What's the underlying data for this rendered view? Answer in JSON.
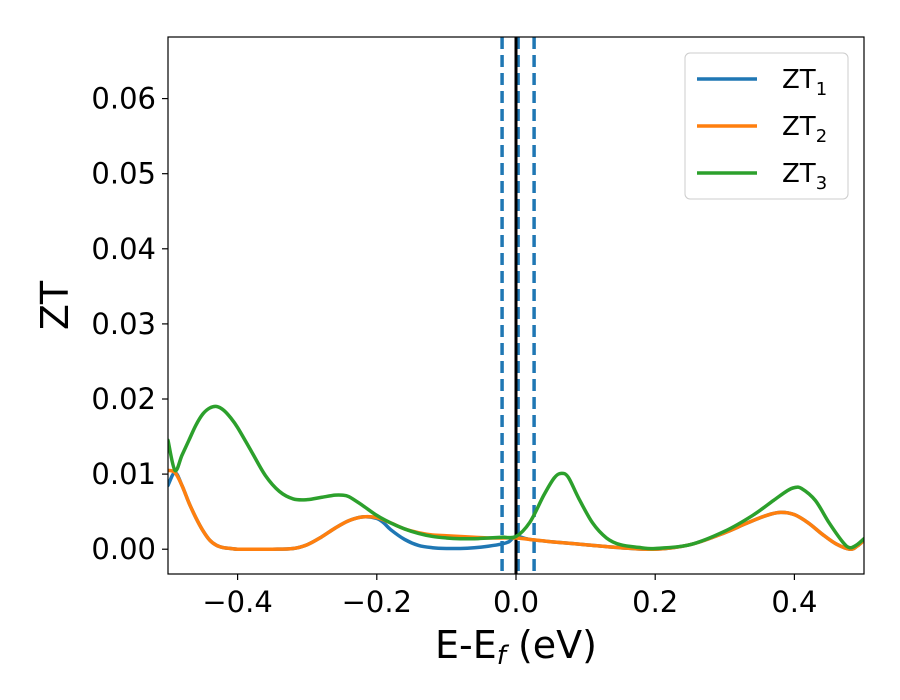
{
  "chart_data": {
    "type": "line",
    "title": "",
    "xlabel": {
      "main": "E-E",
      "sub": "f",
      "unit": " (eV)"
    },
    "ylabel": "ZT",
    "xlim": [
      -0.5,
      0.5
    ],
    "ylim": [
      -0.0033,
      0.0682
    ],
    "xticks": [
      -0.4,
      -0.2,
      0.0,
      0.2,
      0.4
    ],
    "xtick_labels": [
      "−0.4",
      "−0.2",
      "0.0",
      "0.2",
      "0.4"
    ],
    "yticks": [
      0.0,
      0.01,
      0.02,
      0.03,
      0.04,
      0.05,
      0.06
    ],
    "ytick_labels": [
      "0.00",
      "0.01",
      "0.02",
      "0.03",
      "0.04",
      "0.05",
      "0.06"
    ],
    "grid": false,
    "legend_position": "top-right",
    "series": [
      {
        "name": "ZT",
        "sub": "1",
        "color": "#1f77b4",
        "x": [
          -0.5,
          -0.49,
          -0.48,
          -0.47,
          -0.46,
          -0.45,
          -0.44,
          -0.43,
          -0.42,
          -0.41,
          -0.4,
          -0.38,
          -0.35,
          -0.32,
          -0.3,
          -0.28,
          -0.26,
          -0.24,
          -0.22,
          -0.2,
          -0.19,
          -0.18,
          -0.16,
          -0.14,
          -0.12,
          -0.1,
          -0.08,
          -0.06,
          -0.04,
          -0.02,
          -0.01,
          0.0,
          0.02,
          0.05,
          0.1,
          0.15,
          0.2,
          0.25,
          0.3,
          0.33,
          0.36,
          0.38,
          0.4,
          0.42,
          0.44,
          0.46,
          0.48,
          0.49,
          0.5
        ],
        "y": [
          0.0085,
          0.0102,
          0.0085,
          0.0062,
          0.0042,
          0.0025,
          0.0012,
          0.0005,
          0.0002,
          0.0001,
          0.0,
          0.0,
          0.0,
          0.0001,
          0.0006,
          0.0016,
          0.0028,
          0.0038,
          0.0043,
          0.0041,
          0.0035,
          0.0026,
          0.0013,
          0.0005,
          0.0002,
          0.0001,
          0.0001,
          0.0002,
          0.0004,
          0.0007,
          0.001,
          0.0017,
          0.0013,
          0.001,
          0.0006,
          0.0002,
          0.0,
          0.0006,
          0.0022,
          0.0034,
          0.0045,
          0.0049,
          0.0046,
          0.0035,
          0.002,
          0.0007,
          0.0,
          0.0004,
          0.0012
        ]
      },
      {
        "name": "ZT",
        "sub": "2",
        "color": "#ff7f0e",
        "x": [
          -0.5,
          -0.49,
          -0.48,
          -0.47,
          -0.46,
          -0.45,
          -0.44,
          -0.43,
          -0.42,
          -0.41,
          -0.4,
          -0.38,
          -0.35,
          -0.32,
          -0.3,
          -0.28,
          -0.26,
          -0.24,
          -0.22,
          -0.2,
          -0.18,
          -0.16,
          -0.14,
          -0.12,
          -0.1,
          -0.08,
          -0.06,
          -0.04,
          -0.02,
          0.0,
          0.02,
          0.05,
          0.1,
          0.15,
          0.2,
          0.25,
          0.3,
          0.33,
          0.36,
          0.38,
          0.4,
          0.42,
          0.44,
          0.46,
          0.48,
          0.49,
          0.5
        ],
        "y": [
          0.0105,
          0.0102,
          0.0085,
          0.0062,
          0.0042,
          0.0025,
          0.0012,
          0.0005,
          0.0002,
          0.0001,
          0.0,
          0.0,
          0.0,
          0.0001,
          0.0006,
          0.0016,
          0.0028,
          0.0038,
          0.0043,
          0.0042,
          0.0035,
          0.0027,
          0.0022,
          0.0019,
          0.0018,
          0.0017,
          0.0016,
          0.0015,
          0.0015,
          0.0015,
          0.0013,
          0.001,
          0.0006,
          0.0002,
          0.0,
          0.0006,
          0.0022,
          0.0034,
          0.0045,
          0.0049,
          0.0046,
          0.0035,
          0.002,
          0.0007,
          0.0,
          0.0004,
          0.0012
        ]
      },
      {
        "name": "ZT",
        "sub": "3",
        "color": "#2ca02c",
        "x": [
          -0.5,
          -0.49,
          -0.48,
          -0.47,
          -0.46,
          -0.45,
          -0.44,
          -0.43,
          -0.42,
          -0.41,
          -0.4,
          -0.38,
          -0.36,
          -0.34,
          -0.32,
          -0.3,
          -0.28,
          -0.26,
          -0.25,
          -0.24,
          -0.22,
          -0.2,
          -0.18,
          -0.16,
          -0.14,
          -0.12,
          -0.1,
          -0.08,
          -0.06,
          -0.04,
          -0.02,
          0.0,
          0.02,
          0.04,
          0.055,
          0.065,
          0.075,
          0.09,
          0.11,
          0.13,
          0.15,
          0.18,
          0.2,
          0.25,
          0.3,
          0.34,
          0.37,
          0.39,
          0.4,
          0.41,
          0.43,
          0.45,
          0.47,
          0.48,
          0.49,
          0.5
        ],
        "y": [
          0.0145,
          0.0105,
          0.0125,
          0.0145,
          0.0165,
          0.018,
          0.0188,
          0.019,
          0.0185,
          0.0175,
          0.0162,
          0.013,
          0.0098,
          0.0077,
          0.0067,
          0.0066,
          0.0069,
          0.0072,
          0.0072,
          0.007,
          0.0058,
          0.0045,
          0.0035,
          0.0027,
          0.0021,
          0.0017,
          0.0015,
          0.0014,
          0.0014,
          0.0015,
          0.0016,
          0.0017,
          0.0036,
          0.0072,
          0.0095,
          0.0101,
          0.0096,
          0.0068,
          0.0035,
          0.0015,
          0.0006,
          0.0002,
          0.0001,
          0.0006,
          0.0024,
          0.0045,
          0.0065,
          0.0078,
          0.0082,
          0.0081,
          0.0065,
          0.0035,
          0.0009,
          0.0002,
          0.0006,
          0.0014
        ]
      }
    ],
    "vlines": [
      {
        "x": 0.0,
        "color": "#000000",
        "style": "solid"
      },
      {
        "x": -0.02,
        "color": "#1f77b4",
        "style": "dashed"
      },
      {
        "x": 0.003,
        "color": "#1f77b4",
        "style": "dashed"
      },
      {
        "x": 0.026,
        "color": "#1f77b4",
        "style": "dashed"
      }
    ]
  }
}
